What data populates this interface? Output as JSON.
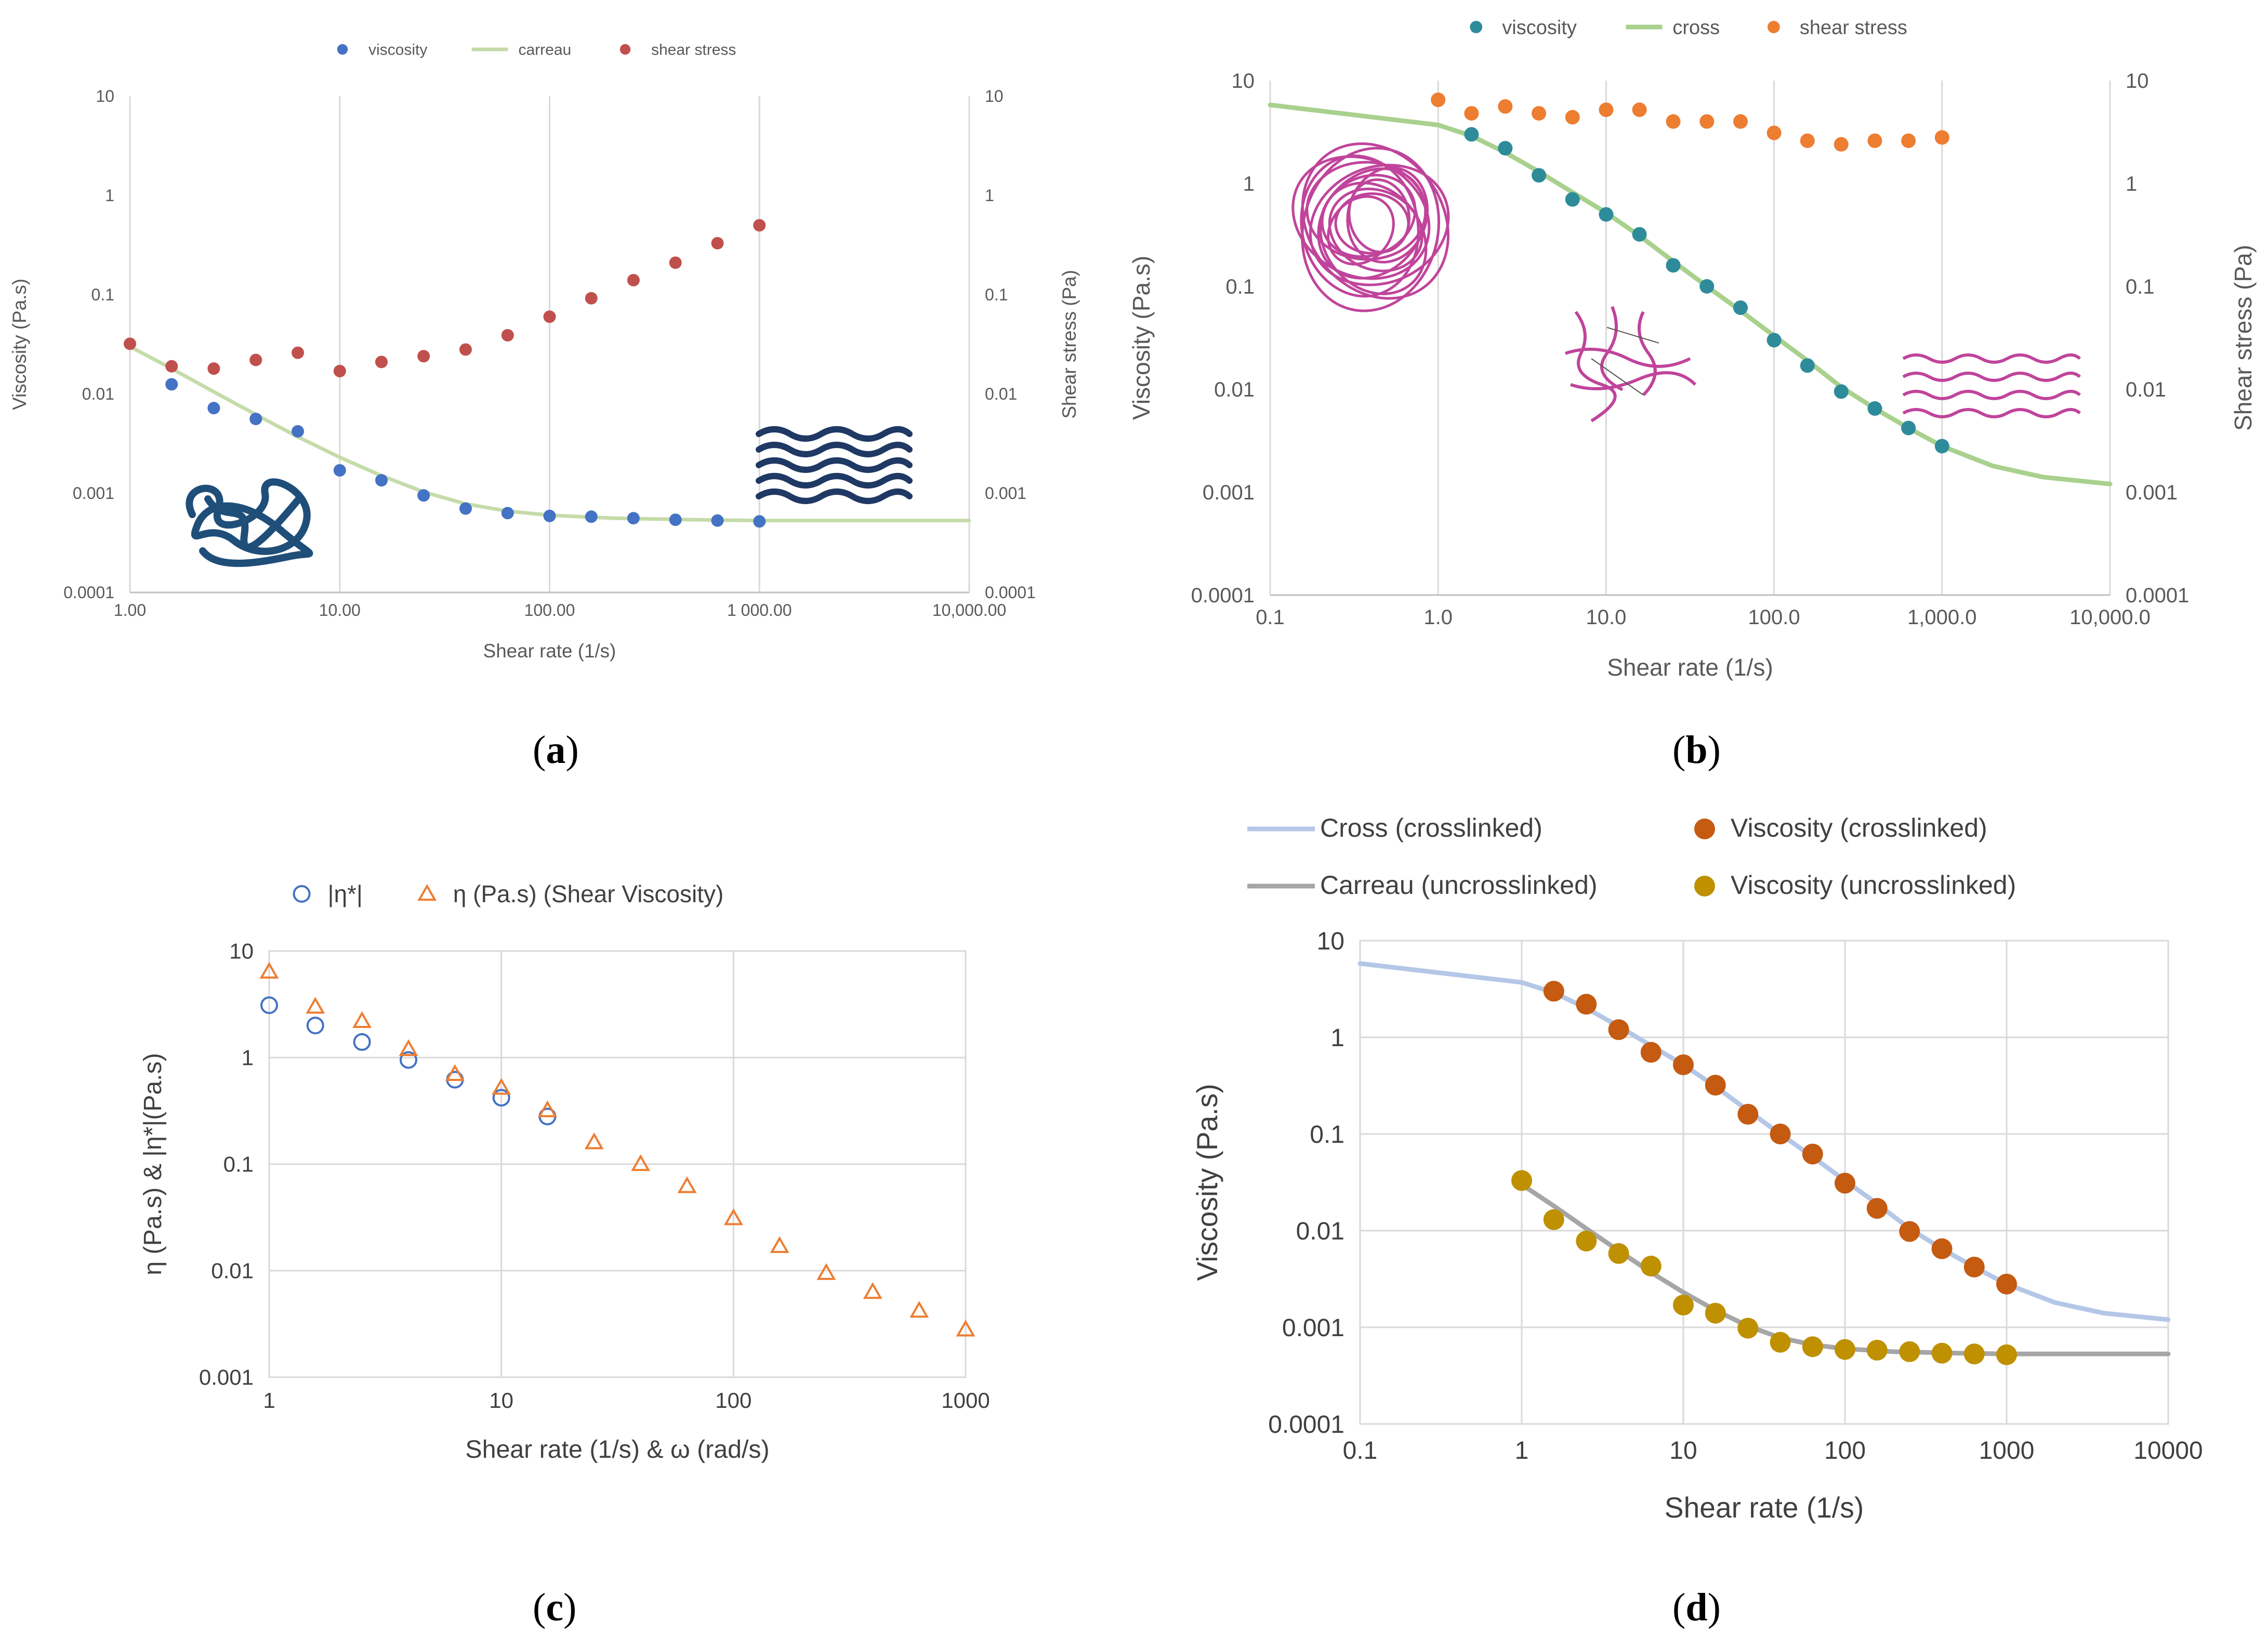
{
  "captions": {
    "a": "a",
    "b": "b",
    "c": "c",
    "d": "d"
  },
  "chart_data": [
    {
      "id": "a",
      "type": "scatter",
      "title": "",
      "xlabel": "Shear rate (1/s)",
      "ylabel": "Viscosity (Pa.s)",
      "y2label": "Shear stress (Pa)",
      "xlim": [
        1,
        10000
      ],
      "ylim": [
        0.0001,
        10
      ],
      "xticks": [
        {
          "v": 1,
          "label": "1.00"
        },
        {
          "v": 10,
          "label": "10.00"
        },
        {
          "v": 100,
          "label": "100.00"
        },
        {
          "v": 1000,
          "label": "1 000.00"
        },
        {
          "v": 10000,
          "label": "10,000.00"
        }
      ],
      "yticks": [
        {
          "v": 10,
          "label": "10"
        },
        {
          "v": 1,
          "label": "1"
        },
        {
          "v": 0.1,
          "label": "0.1"
        },
        {
          "v": 0.01,
          "label": "0.01"
        },
        {
          "v": 0.001,
          "label": "0.001"
        },
        {
          "v": 0.0001,
          "label": "0.0001"
        }
      ],
      "grid": "vertical",
      "legend": "top-center",
      "series": [
        {
          "name": "viscosity",
          "kind": "points",
          "color": "#4472c4",
          "x": [
            1.58,
            2.51,
            3.98,
            6.31,
            10,
            15.8,
            25.1,
            39.8,
            63.1,
            100,
            158,
            251,
            398,
            631,
            1000
          ],
          "y": [
            0.0125,
            0.0072,
            0.0056,
            0.0042,
            0.0017,
            0.00135,
            0.00095,
            0.0007,
            0.00063,
            0.00059,
            0.00058,
            0.00056,
            0.00054,
            0.00053,
            0.00052
          ]
        },
        {
          "name": "carreau",
          "kind": "line",
          "color": "#c5dba9",
          "x": [
            1,
            1.58,
            2.51,
            3.98,
            6.31,
            10,
            15.8,
            25.1,
            39.8,
            63.1,
            100,
            200,
            500,
            1000,
            10000
          ],
          "y": [
            0.03,
            0.018,
            0.0105,
            0.0062,
            0.0037,
            0.0023,
            0.0015,
            0.00103,
            0.00078,
            0.00066,
            0.0006,
            0.00056,
            0.00054,
            0.00053,
            0.00053
          ]
        },
        {
          "name": "shear stress",
          "kind": "points",
          "color": "#c0504d",
          "x": [
            1,
            1.58,
            2.51,
            3.98,
            6.31,
            10,
            15.8,
            25.1,
            39.8,
            63.1,
            100,
            158,
            251,
            398,
            631,
            1000
          ],
          "y": [
            0.032,
            0.019,
            0.018,
            0.022,
            0.026,
            0.017,
            0.021,
            0.024,
            0.028,
            0.039,
            0.06,
            0.092,
            0.14,
            0.21,
            0.33,
            0.5
          ]
        }
      ]
    },
    {
      "id": "b",
      "type": "scatter",
      "title": "",
      "xlabel": "Shear rate (1/s)",
      "ylabel": "Viscosity (Pa.s)",
      "y2label": "Shear stress (Pa)",
      "xlim": [
        0.1,
        10000
      ],
      "ylim": [
        0.0001,
        10
      ],
      "xticks": [
        {
          "v": 0.1,
          "label": "0.1"
        },
        {
          "v": 1,
          "label": "1.0"
        },
        {
          "v": 10,
          "label": "10.0"
        },
        {
          "v": 100,
          "label": "100.0"
        },
        {
          "v": 1000,
          "label": "1,000.0"
        },
        {
          "v": 10000,
          "label": "10,000.0"
        }
      ],
      "yticks": [
        {
          "v": 10,
          "label": "10"
        },
        {
          "v": 1,
          "label": "1"
        },
        {
          "v": 0.1,
          "label": "0.1"
        },
        {
          "v": 0.01,
          "label": "0.01"
        },
        {
          "v": 0.001,
          "label": "0.001"
        },
        {
          "v": 0.0001,
          "label": "0.0001"
        }
      ],
      "grid": "vertical",
      "legend": "top-center",
      "series": [
        {
          "name": "viscosity",
          "kind": "points",
          "color": "#2e8b9a",
          "x": [
            1.58,
            2.51,
            3.98,
            6.31,
            10,
            15.8,
            25.1,
            39.8,
            63.1,
            100,
            158,
            251,
            398,
            631,
            1000
          ],
          "y": [
            3.0,
            2.2,
            1.2,
            0.7,
            0.5,
            0.32,
            0.16,
            0.1,
            0.062,
            0.03,
            0.017,
            0.0095,
            0.0065,
            0.0042,
            0.0028
          ]
        },
        {
          "name": "cross",
          "kind": "line",
          "color": "#a9d18e",
          "x": [
            0.1,
            1,
            1.58,
            2.51,
            3.98,
            6.31,
            10,
            15.8,
            25.1,
            39.8,
            63.1,
            100,
            158,
            251,
            398,
            631,
            1000,
            2000,
            4000,
            10000
          ],
          "y": [
            5.8,
            3.7,
            2.9,
            2.0,
            1.3,
            0.82,
            0.52,
            0.31,
            0.175,
            0.1,
            0.058,
            0.033,
            0.019,
            0.0105,
            0.0065,
            0.0042,
            0.0028,
            0.0018,
            0.0014,
            0.0012
          ]
        },
        {
          "name": "shear stress",
          "kind": "points",
          "color": "#ed7d31",
          "x": [
            1,
            1.58,
            2.51,
            3.98,
            6.31,
            10,
            15.8,
            25.1,
            39.8,
            63.1,
            100,
            158,
            251,
            398,
            631,
            1000
          ],
          "y": [
            6.5,
            4.8,
            5.6,
            4.8,
            4.4,
            5.2,
            5.2,
            4.0,
            4.0,
            4.0,
            3.1,
            2.6,
            2.4,
            2.6,
            2.6,
            2.8
          ]
        }
      ]
    },
    {
      "id": "c",
      "type": "scatter",
      "title": "",
      "xlabel": "Shear rate (1/s) & ω (rad/s)",
      "ylabel": "η (Pa.s) & |η*|(Pa.s)",
      "xlim": [
        1,
        1000
      ],
      "ylim": [
        0.001,
        10
      ],
      "xticks": [
        {
          "v": 1,
          "label": "1"
        },
        {
          "v": 10,
          "label": "10"
        },
        {
          "v": 100,
          "label": "100"
        },
        {
          "v": 1000,
          "label": "1000"
        }
      ],
      "yticks": [
        {
          "v": 10,
          "label": "10"
        },
        {
          "v": 1,
          "label": "1"
        },
        {
          "v": 0.1,
          "label": "0.1"
        },
        {
          "v": 0.01,
          "label": "0.01"
        },
        {
          "v": 0.001,
          "label": "0.001"
        }
      ],
      "grid": "both",
      "legend": "top-center",
      "series": [
        {
          "name": "|η*|",
          "kind": "circles",
          "color": "#4472c4",
          "x": [
            1,
            1.58,
            2.51,
            3.98,
            6.31,
            10,
            15.8
          ],
          "y": [
            3.1,
            2.0,
            1.4,
            0.95,
            0.62,
            0.42,
            0.28
          ]
        },
        {
          "name": "η (Pa.s) (Shear Viscosity)",
          "kind": "triangles",
          "color": "#ed7d31",
          "x": [
            1,
            1.58,
            2.51,
            3.98,
            6.31,
            10,
            15.8,
            25.1,
            39.8,
            63.1,
            100,
            158,
            251,
            398,
            631,
            1000
          ],
          "y": [
            6.4,
            3.0,
            2.2,
            1.2,
            0.7,
            0.52,
            0.32,
            0.16,
            0.1,
            0.062,
            0.031,
            0.017,
            0.0095,
            0.0063,
            0.0042,
            0.0028
          ]
        }
      ]
    },
    {
      "id": "d",
      "type": "scatter",
      "title": "",
      "xlabel": "Shear rate (1/s)",
      "ylabel": "Viscosity (Pa.s)",
      "xlim": [
        0.1,
        10000
      ],
      "ylim": [
        0.0001,
        10
      ],
      "xticks": [
        {
          "v": 0.1,
          "label": "0.1"
        },
        {
          "v": 1,
          "label": "1"
        },
        {
          "v": 10,
          "label": "10"
        },
        {
          "v": 100,
          "label": "100"
        },
        {
          "v": 1000,
          "label": "1000"
        },
        {
          "v": 10000,
          "label": "10000"
        }
      ],
      "yticks": [
        {
          "v": 10,
          "label": "10"
        },
        {
          "v": 1,
          "label": "1"
        },
        {
          "v": 0.1,
          "label": "0.1"
        },
        {
          "v": 0.01,
          "label": "0.01"
        },
        {
          "v": 0.001,
          "label": "0.001"
        },
        {
          "v": 0.0001,
          "label": "0.0001"
        }
      ],
      "grid": "both",
      "legend": "top-center",
      "series": [
        {
          "name": "Cross (crosslinked)",
          "kind": "line",
          "color": "#b4c7e7",
          "x": [
            0.1,
            1,
            1.58,
            2.51,
            3.98,
            6.31,
            10,
            15.8,
            25.1,
            39.8,
            63.1,
            100,
            158,
            251,
            398,
            631,
            1000,
            2000,
            4000,
            10000
          ],
          "y": [
            5.8,
            3.7,
            2.9,
            2.0,
            1.3,
            0.82,
            0.52,
            0.31,
            0.175,
            0.1,
            0.058,
            0.033,
            0.019,
            0.0105,
            0.0065,
            0.0042,
            0.0028,
            0.0018,
            0.0014,
            0.0012
          ]
        },
        {
          "name": "Viscosity (crosslinked)",
          "kind": "points",
          "color": "#c55a11",
          "x": [
            1.58,
            2.51,
            3.98,
            6.31,
            10,
            15.8,
            25.1,
            39.8,
            63.1,
            100,
            158,
            251,
            398,
            631,
            1000
          ],
          "y": [
            3.0,
            2.2,
            1.2,
            0.7,
            0.52,
            0.32,
            0.16,
            0.1,
            0.062,
            0.031,
            0.017,
            0.0098,
            0.0065,
            0.0042,
            0.0028
          ]
        },
        {
          "name": "Carreau (uncrosslinked)",
          "kind": "line",
          "color": "#a6a6a6",
          "x": [
            1,
            1.58,
            2.51,
            3.98,
            6.31,
            10,
            15.8,
            25.1,
            39.8,
            63.1,
            100,
            200,
            500,
            1000,
            10000
          ],
          "y": [
            0.03,
            0.018,
            0.0105,
            0.0062,
            0.0037,
            0.0023,
            0.0015,
            0.00103,
            0.00078,
            0.00066,
            0.0006,
            0.00056,
            0.00054,
            0.00053,
            0.00053
          ]
        },
        {
          "name": "Viscosity (uncrosslinked)",
          "kind": "points",
          "color": "#bf9000",
          "x": [
            1,
            1.58,
            2.51,
            3.98,
            6.31,
            10,
            15.8,
            25.1,
            39.8,
            63.1,
            100,
            158,
            251,
            398,
            631,
            1000
          ],
          "y": [
            0.033,
            0.013,
            0.0078,
            0.0058,
            0.0043,
            0.0017,
            0.0014,
            0.00098,
            0.0007,
            0.00063,
            0.00059,
            0.00058,
            0.00056,
            0.00054,
            0.00053,
            0.00052
          ]
        }
      ]
    }
  ]
}
